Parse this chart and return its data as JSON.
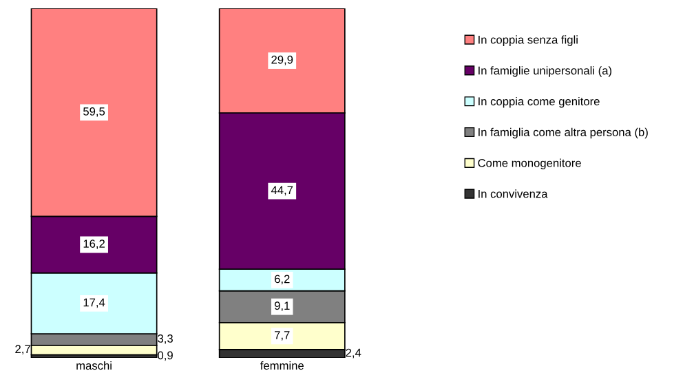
{
  "chart_data": {
    "type": "bar",
    "stacked": true,
    "categories": [
      "maschi",
      "femmine"
    ],
    "series": [
      {
        "name": "In convivenza",
        "color": "#333333",
        "values": [
          0.9,
          2.4
        ],
        "value_labels": [
          "0,9",
          "2,4"
        ]
      },
      {
        "name": "Come monogenitore",
        "color": "#ffffcc",
        "values": [
          2.7,
          7.7
        ],
        "value_labels": [
          "2,7",
          "7,7"
        ]
      },
      {
        "name": "In famiglia come altra persona (b)",
        "color": "#808080",
        "values": [
          3.3,
          9.1
        ],
        "value_labels": [
          "3,3",
          "9,1"
        ]
      },
      {
        "name": "In coppia come genitore",
        "color": "#ccffff",
        "values": [
          17.4,
          6.2
        ],
        "value_labels": [
          "17,4",
          "6,2"
        ]
      },
      {
        "name": "In famiglie unipersonali (a)",
        "color": "#660066",
        "values": [
          16.2,
          44.7
        ],
        "value_labels": [
          "16,2",
          "44,7"
        ]
      },
      {
        "name": "In coppia senza figli",
        "color": "#ff8080",
        "values": [
          59.5,
          29.9
        ],
        "value_labels": [
          "59,5",
          "29,9"
        ]
      }
    ],
    "legend": "right",
    "grid": false
  }
}
